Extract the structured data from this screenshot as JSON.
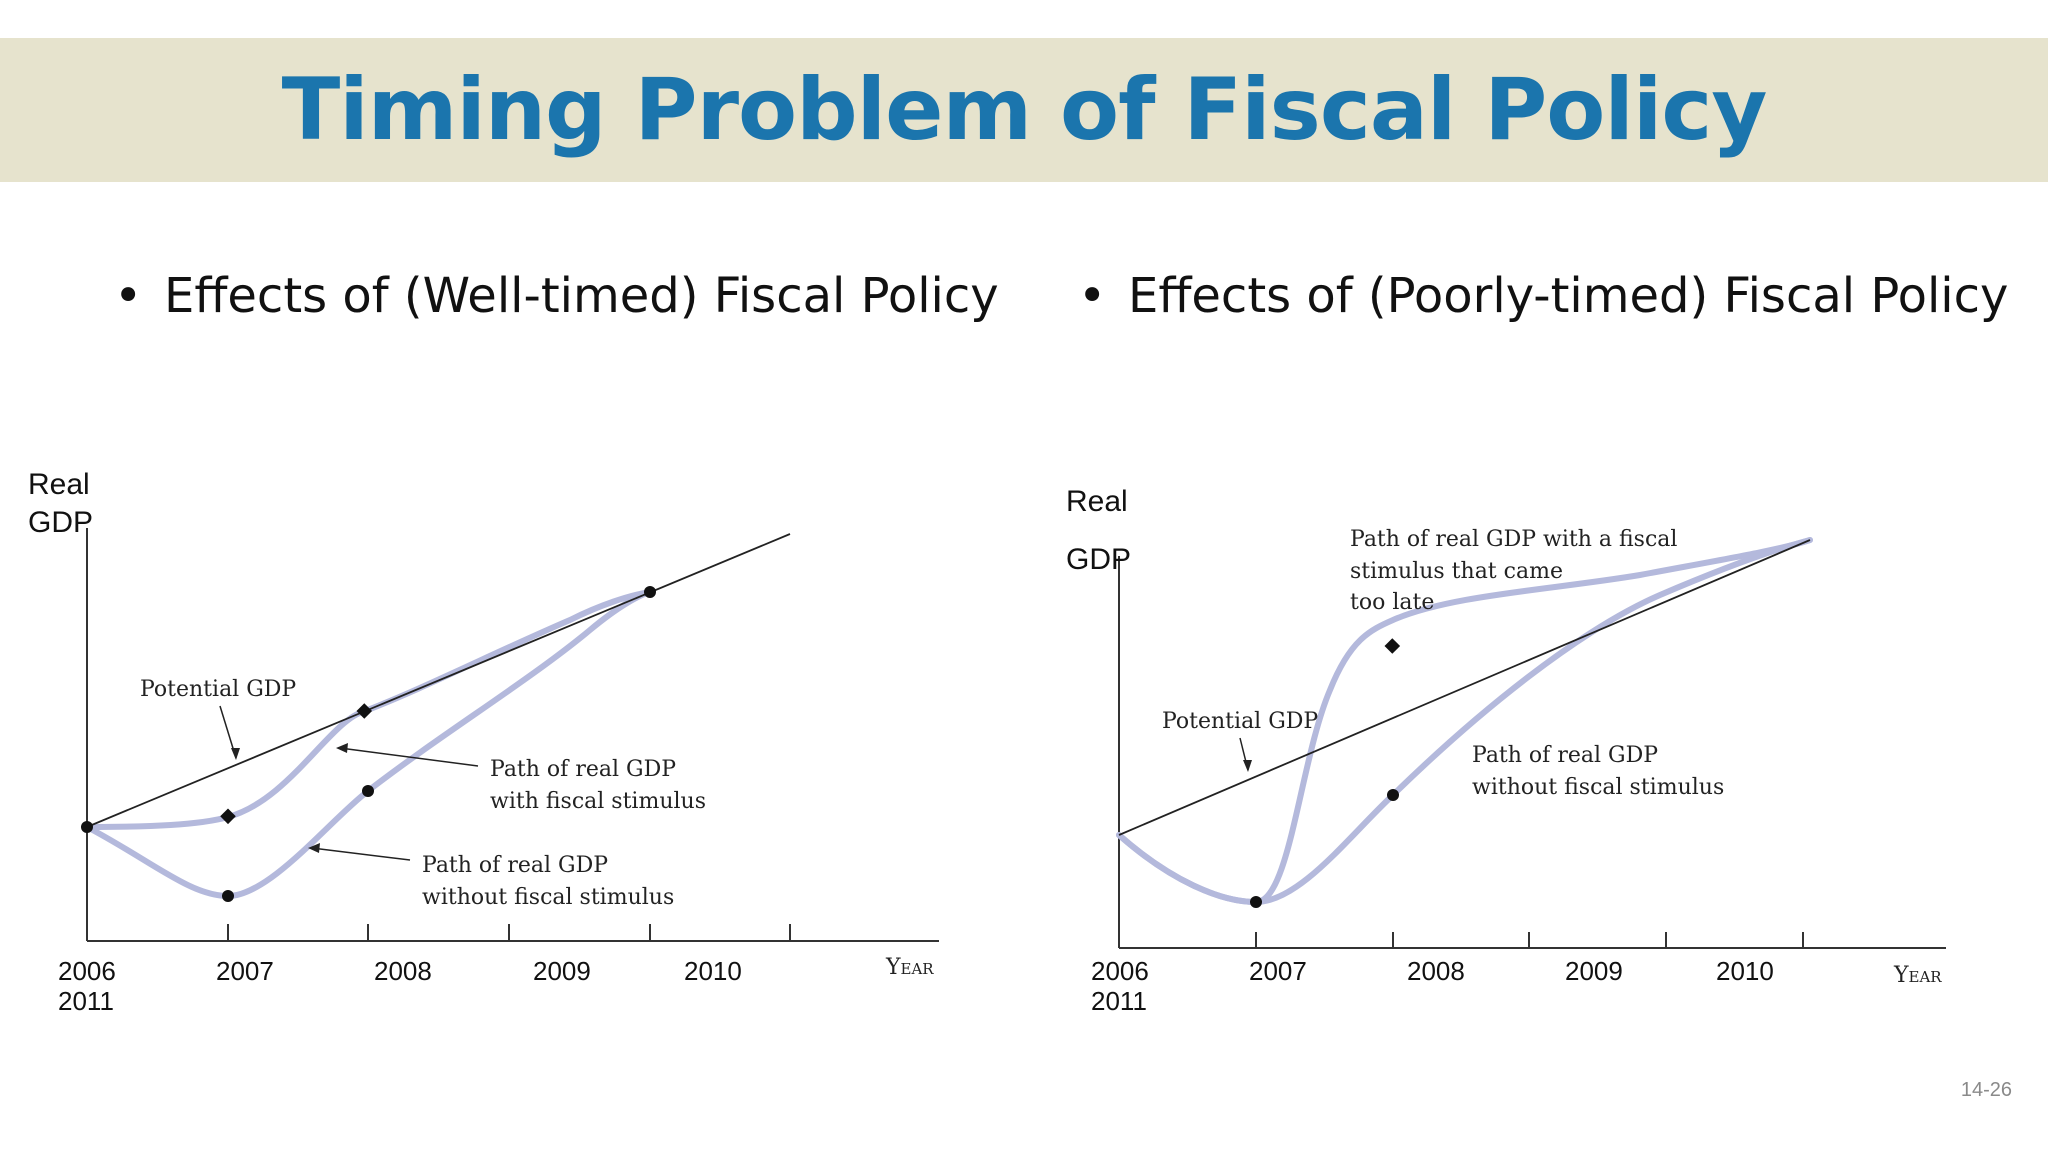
{
  "slide": {
    "title": "Timing Problem of Fiscal Policy",
    "bullet_left": "Effects of (Well-timed) Fiscal Policy",
    "bullet_right": "Effects of (Poorly-timed) Fiscal Policy",
    "page_number": "14-26"
  },
  "chart_data": [
    {
      "type": "line",
      "title": "",
      "ylabel": [
        "Real",
        "GDP"
      ],
      "xlabel": "Year",
      "x_ticks": [
        "2006",
        "2007",
        "2008",
        "2009",
        "2010",
        "2011"
      ],
      "series": [
        {
          "name": "Potential GDP",
          "x": [
            2006,
            2011
          ],
          "y": [
            1.0,
            3.0
          ]
        },
        {
          "name": "Path of real GDP with fiscal stimulus",
          "x": [
            2006,
            2007,
            2008,
            2010
          ],
          "y": [
            1.0,
            1.02,
            1.6,
            2.8
          ]
        },
        {
          "name": "Path of real GDP without fiscal stimulus",
          "x": [
            2006,
            2007,
            2008,
            2010
          ],
          "y": [
            1.0,
            0.45,
            1.2,
            2.8
          ]
        }
      ],
      "annotations": [
        {
          "text": "Potential GDP"
        },
        {
          "lines": [
            "Path of real GDP",
            "with fiscal stimulus"
          ]
        },
        {
          "lines": [
            "Path of real GDP",
            "without fiscal stimulus"
          ]
        }
      ]
    },
    {
      "type": "line",
      "title": "",
      "ylabel": [
        "Real",
        "GDP"
      ],
      "xlabel": "Year",
      "x_ticks": [
        "2006",
        "2007",
        "2008",
        "2009",
        "2010",
        "2011"
      ],
      "series": [
        {
          "name": "Potential GDP",
          "x": [
            2006,
            2011
          ],
          "y": [
            1.0,
            3.0
          ]
        },
        {
          "name": "Path of real GDP with a fiscal stimulus that came too late",
          "x": [
            2006,
            2007,
            2008,
            2011
          ],
          "y": [
            1.0,
            0.5,
            2.3,
            3.0
          ]
        },
        {
          "name": "Path of real GDP without fiscal stimulus",
          "x": [
            2006,
            2007,
            2008,
            2011
          ],
          "y": [
            1.0,
            0.5,
            1.3,
            3.0
          ]
        }
      ],
      "annotations": [
        {
          "text": "Potential GDP"
        },
        {
          "lines": [
            "Path of real GDP with a fiscal",
            "stimulus that came",
            "too late"
          ]
        },
        {
          "lines": [
            "Path of real GDP",
            "without fiscal stimulus"
          ]
        }
      ]
    }
  ]
}
